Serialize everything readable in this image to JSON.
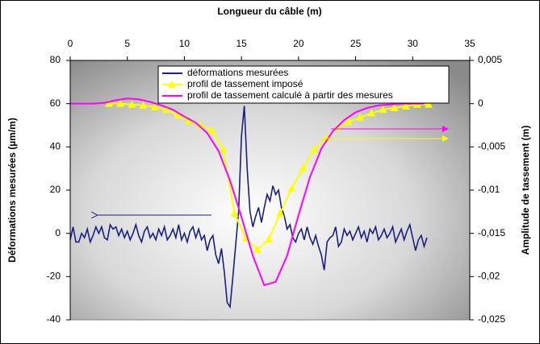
{
  "chart_data": {
    "type": "line",
    "xlabel": "Longueur du câble (m)",
    "ylabel": "Déformations mesurées (µm/m)",
    "y2label": "Amplitude de tassement (m)",
    "xlim": [
      0,
      35
    ],
    "xticks": [
      0,
      5,
      10,
      15,
      20,
      25,
      30,
      35
    ],
    "ylim": [
      -40,
      80
    ],
    "yticks": [
      -40,
      -20,
      0,
      20,
      40,
      60,
      80
    ],
    "y2lim": [
      -0.025,
      0.005
    ],
    "y2ticks": [
      {
        "value": -0.025,
        "label": "-0,025"
      },
      {
        "value": -0.02,
        "label": "-0,02"
      },
      {
        "value": -0.015,
        "label": "-0,015"
      },
      {
        "value": -0.01,
        "label": "-0,01"
      },
      {
        "value": -0.005,
        "label": "-0,005"
      },
      0,
      {
        "value": 0.005,
        "label": "0,005"
      }
    ],
    "legend": "top",
    "series": [
      {
        "name": "déformations mesurées",
        "color": "#1a1f80",
        "x": [
          0,
          0.25,
          0.5,
          0.75,
          1,
          1.25,
          1.5,
          1.75,
          2,
          2.25,
          2.5,
          2.75,
          3,
          3.25,
          3.5,
          3.75,
          4,
          4.25,
          4.5,
          4.75,
          5,
          5.25,
          5.5,
          5.75,
          6,
          6.25,
          6.5,
          6.75,
          7,
          7.25,
          7.5,
          7.75,
          8,
          8.25,
          8.5,
          8.75,
          9,
          9.25,
          9.5,
          9.75,
          10,
          10.25,
          10.5,
          10.75,
          11,
          11.25,
          11.5,
          11.75,
          12,
          12.25,
          12.5,
          12.75,
          13,
          13.25,
          13.5,
          13.75,
          14,
          14.25,
          14.5,
          14.75,
          15,
          15.25,
          15.5,
          15.75,
          16,
          16.25,
          16.5,
          16.75,
          17,
          17.25,
          17.5,
          17.75,
          18,
          18.25,
          18.5,
          18.75,
          19,
          19.25,
          19.5,
          19.75,
          20,
          20.25,
          20.5,
          20.75,
          21,
          21.25,
          21.5,
          21.75,
          22,
          22.25,
          22.5,
          22.75,
          23,
          23.25,
          23.5,
          23.75,
          24,
          24.25,
          24.5,
          24.75,
          25,
          25.25,
          25.5,
          25.75,
          26,
          26.25,
          26.5,
          26.75,
          27,
          27.25,
          27.5,
          27.75,
          28,
          28.25,
          28.5,
          28.75,
          29,
          29.25,
          29.5,
          29.75,
          30,
          30.25,
          30.5,
          30.75,
          31,
          31.25
        ],
        "values": [
          -3,
          3,
          -4,
          -4,
          0,
          -2,
          2,
          -4,
          -1,
          3,
          0,
          3,
          -2,
          -3,
          4,
          2,
          3,
          -1,
          2,
          -2,
          1,
          -3,
          0,
          4,
          -1,
          -4,
          1,
          3,
          -2,
          0,
          -3,
          2,
          -1,
          3,
          -3,
          -1,
          2,
          -2,
          4,
          -3,
          0,
          -4,
          1,
          3,
          -2,
          2,
          -3,
          -1,
          -8,
          -3,
          -1,
          -10,
          -14,
          -7,
          -18,
          -32,
          -34,
          -20,
          -5,
          10,
          45,
          59,
          30,
          10,
          3,
          8,
          12,
          5,
          12,
          18,
          15,
          22,
          18,
          20,
          12,
          8,
          2,
          4,
          -2,
          -4,
          0,
          2,
          -3,
          3,
          -2,
          -5,
          -1,
          -6,
          -10,
          -17,
          -4,
          -2,
          -1,
          3,
          -6,
          -4,
          2,
          -1,
          1,
          -3,
          0,
          3,
          -2,
          1,
          -4,
          2,
          0,
          3,
          -3,
          -1,
          2,
          -2,
          0,
          3,
          -4,
          -1,
          2,
          -3,
          1,
          4,
          -2,
          -8,
          -3,
          -1,
          -6,
          -2
        ]
      },
      {
        "name": "profil de tassement imposé",
        "color": "#ffff00",
        "axis": "y2",
        "marker": "triangle",
        "x": [
          3.4,
          4.4,
          5.4,
          6.4,
          7.4,
          8.4,
          9.4,
          10.4,
          11.4,
          12.4,
          13.4,
          14.4,
          15.4,
          16.4,
          17.4,
          18.4,
          19.4,
          20.4,
          21.4,
          22.4,
          23.4,
          24.4,
          25.4,
          26.4,
          27.4,
          28.4,
          29.4,
          30.4,
          31.4
        ],
        "values": [
          0,
          0,
          -0.0001,
          -0.0002,
          -0.0004,
          -0.0007,
          -0.0013,
          -0.002,
          -0.0025,
          -0.0031,
          -0.0053,
          -0.0127,
          -0.0156,
          -0.0169,
          -0.0157,
          -0.0127,
          -0.0098,
          -0.0075,
          -0.0053,
          -0.004,
          -0.0028,
          -0.0021,
          -0.0016,
          -0.0011,
          -0.0007,
          -0.0005,
          -0.0003,
          -0.0001,
          -0.0001
        ]
      },
      {
        "name": "profil de tassement calculé à partir des mesures",
        "color": "#ff00ff",
        "axis": "y2",
        "x": [
          0,
          1,
          2,
          3,
          4,
          5,
          6,
          7,
          8,
          9,
          10,
          11,
          12,
          13,
          14,
          15,
          16,
          17,
          18,
          19,
          20,
          21,
          22,
          23,
          24,
          25,
          26,
          27,
          28,
          29,
          30,
          31
        ],
        "values": [
          0,
          0,
          0,
          0.0001,
          0.0004,
          0.0006,
          0.0005,
          0.0002,
          -0.0002,
          -0.0007,
          -0.0015,
          -0.0022,
          -0.0034,
          -0.0055,
          -0.0089,
          -0.0131,
          -0.0176,
          -0.021,
          -0.0206,
          -0.0176,
          -0.0129,
          -0.0085,
          -0.0052,
          -0.0032,
          -0.0019,
          -0.001,
          -0.0005,
          -0.0002,
          -0.0001,
          0,
          0,
          0
        ]
      }
    ]
  }
}
